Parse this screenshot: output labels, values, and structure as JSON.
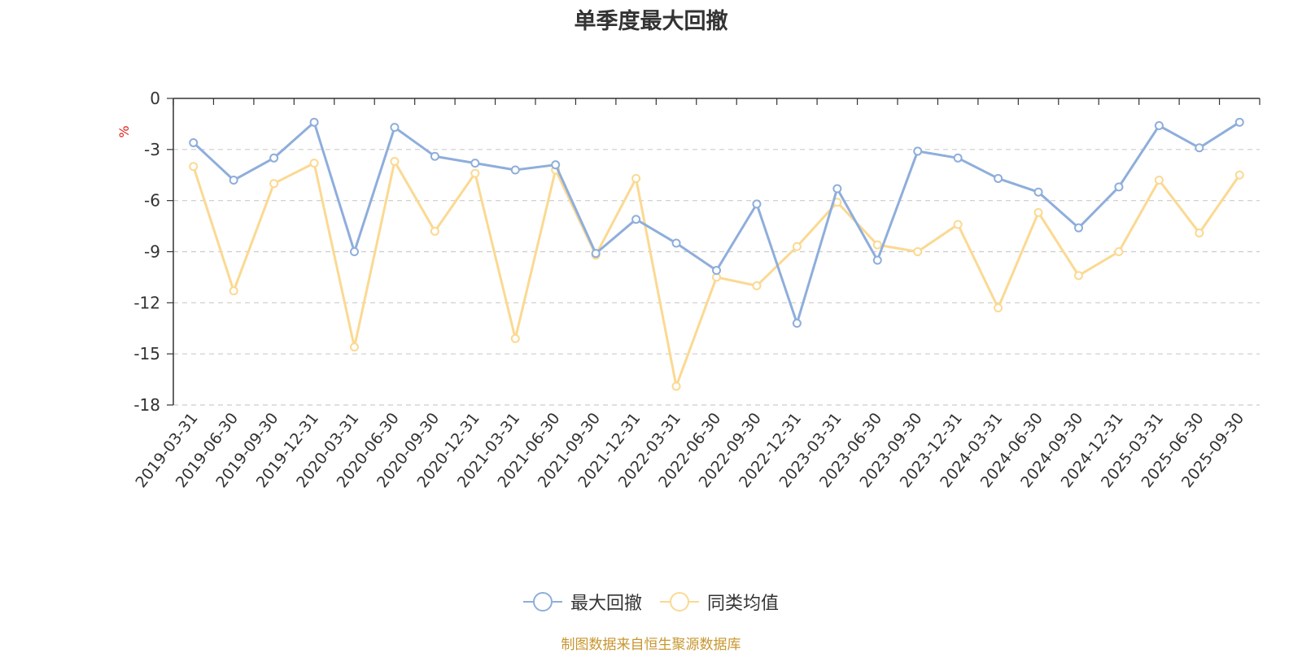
{
  "source": "制图数据来自恒生聚源数据库",
  "colors": {
    "series_1": "#8eaedb",
    "series_2": "#fbd992",
    "unit": "#e0201a",
    "source": "#c8962f"
  },
  "chart_data": {
    "type": "line",
    "title": "单季度最大回撤",
    "ylabel": "%",
    "ylim": [
      -18,
      0
    ],
    "yticks": [
      0,
      -3,
      -6,
      -9,
      -12,
      -15,
      -18
    ],
    "grid": true,
    "legend_position": "bottom",
    "categories": [
      "2019-03-31",
      "2019-06-30",
      "2019-09-30",
      "2019-12-31",
      "2020-03-31",
      "2020-06-30",
      "2020-09-30",
      "2020-12-31",
      "2021-03-31",
      "2021-06-30",
      "2021-09-30",
      "2021-12-31",
      "2022-03-31",
      "2022-06-30",
      "2022-09-30",
      "2022-12-31",
      "2023-03-31",
      "2023-06-30",
      "2023-09-30",
      "2023-12-31",
      "2024-03-31",
      "2024-06-30",
      "2024-09-30",
      "2024-12-31",
      "2025-03-31",
      "2025-06-30",
      "2025-09-30"
    ],
    "series": [
      {
        "name": "最大回撤",
        "values": [
          -2.6,
          -4.8,
          -3.5,
          -1.4,
          -9.0,
          -1.7,
          -3.4,
          -3.8,
          -4.2,
          -3.9,
          -9.1,
          -7.1,
          -8.5,
          -10.1,
          -6.2,
          -13.2,
          -5.3,
          -9.5,
          -3.1,
          -3.5,
          -4.7,
          -5.5,
          -7.6,
          -5.2,
          -1.6,
          -2.9,
          -1.4
        ]
      },
      {
        "name": "同类均值",
        "values": [
          -4.0,
          -11.3,
          -5.0,
          -3.8,
          -14.6,
          -3.7,
          -7.8,
          -4.4,
          -14.1,
          -4.2,
          -9.2,
          -4.7,
          -16.9,
          -10.5,
          -11.0,
          -8.7,
          -6.1,
          -8.6,
          -9.0,
          -7.4,
          -12.3,
          -6.7,
          -10.4,
          -9.0,
          -4.8,
          -7.9,
          -4.5
        ]
      }
    ]
  }
}
